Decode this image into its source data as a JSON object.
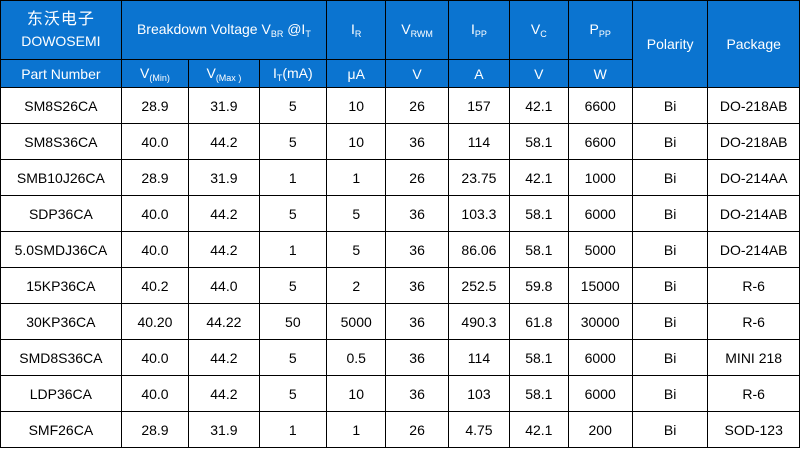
{
  "header": {
    "brand_cn": "东沃电子",
    "brand_en": "DOWOSEMI",
    "part_number": "Part Number",
    "breakdown": {
      "text": "Breakdown Voltage V",
      "sub": "BR",
      "at": " @I",
      "sub2": "T"
    },
    "ir": {
      "main": "I",
      "sub": "R"
    },
    "vrwm": {
      "main": "V",
      "sub": "RWM"
    },
    "ipp": {
      "main": "I",
      "sub": "PP"
    },
    "vc": {
      "main": "V",
      "sub": "C"
    },
    "ppp": {
      "main": "P",
      "sub": "PP"
    },
    "polarity": "Polarity",
    "package": "Package",
    "vmin": {
      "main": "V",
      "sub": "(Min)"
    },
    "vmax": {
      "main": "V",
      "sub": "(Max )"
    },
    "it": {
      "main": "I",
      "sub": "T",
      "rest": "(mA)"
    },
    "units": {
      "ir": "μA",
      "vrwm": "V",
      "ipp": "A",
      "vc": "V",
      "ppp": "W"
    }
  },
  "rows": [
    [
      "SM8S26CA",
      "28.9",
      "31.9",
      "5",
      "10",
      "26",
      "157",
      "42.1",
      "6600",
      "Bi",
      "DO-218AB"
    ],
    [
      "SM8S36CA",
      "40.0",
      "44.2",
      "5",
      "10",
      "36",
      "114",
      "58.1",
      "6600",
      "Bi",
      "DO-218AB"
    ],
    [
      "SMB10J26CA",
      "28.9",
      "31.9",
      "1",
      "1",
      "26",
      "23.75",
      "42.1",
      "1000",
      "Bi",
      "DO-214AA"
    ],
    [
      "SDP36CA",
      "40.0",
      "44.2",
      "5",
      "5",
      "36",
      "103.3",
      "58.1",
      "6000",
      "Bi",
      "DO-214AB"
    ],
    [
      "5.0SMDJ36CA",
      "40.0",
      "44.2",
      "1",
      "5",
      "36",
      "86.06",
      "58.1",
      "5000",
      "Bi",
      "DO-214AB"
    ],
    [
      "15KP36CA",
      "40.2",
      "44.0",
      "5",
      "2",
      "36",
      "252.5",
      "59.8",
      "15000",
      "Bi",
      "R-6"
    ],
    [
      "30KP36CA",
      "40.20",
      "44.22",
      "50",
      "5000",
      "36",
      "490.3",
      "61.8",
      "30000",
      "Bi",
      "R-6"
    ],
    [
      "SMD8S36CA",
      "40.0",
      "44.2",
      "5",
      "0.5",
      "36",
      "114",
      "58.1",
      "6000",
      "Bi",
      "MINI 218"
    ],
    [
      "LDP36CA",
      "40.0",
      "44.2",
      "5",
      "10",
      "36",
      "103",
      "58.1",
      "6000",
      "Bi",
      "R-6"
    ],
    [
      "SMF26CA",
      "28.9",
      "31.9",
      "1",
      "1",
      "26",
      "4.75",
      "42.1",
      "200",
      "Bi",
      "SOD-123"
    ]
  ]
}
